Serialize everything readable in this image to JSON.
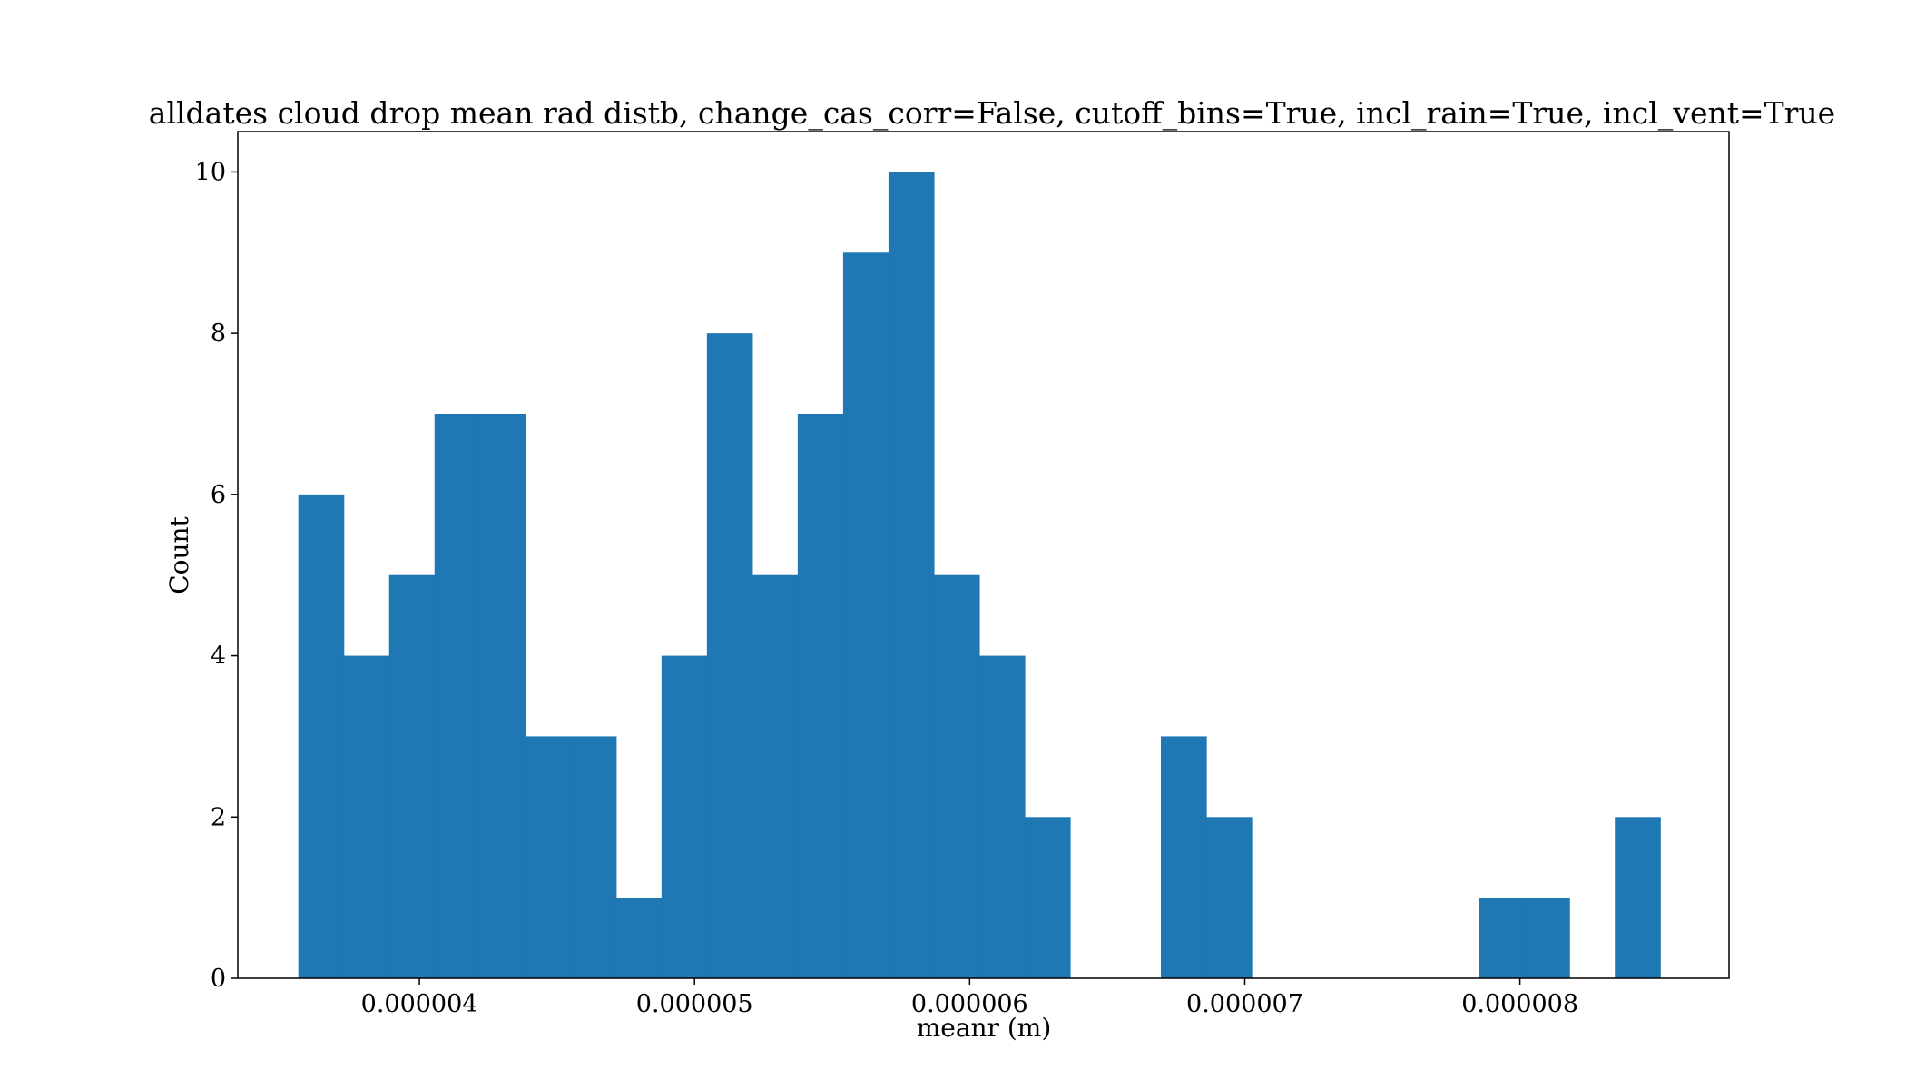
{
  "chart_data": {
    "type": "bar",
    "title": "alldates cloud drop mean rad distb, change_cas_corr=False, cutoff_bins=True, incl_rain=True, incl_vent=True",
    "xlabel": "meanr (m)",
    "ylabel": "Count",
    "bin_edges": [
      3.56e-06,
      3.725e-06,
      3.89e-06,
      4.055e-06,
      4.22e-06,
      4.385e-06,
      4.55e-06,
      4.715e-06,
      4.88e-06,
      5.045e-06,
      5.21e-06,
      5.375e-06,
      5.54e-06,
      5.705e-06,
      5.87e-06,
      6.035e-06,
      6.2e-06,
      6.365e-06,
      6.53e-06,
      6.695e-06,
      6.86e-06,
      7.025e-06,
      7.19e-06,
      7.355e-06,
      7.52e-06,
      7.685e-06,
      7.85e-06,
      8.015e-06,
      8.18e-06,
      8.345e-06,
      8.51e-06
    ],
    "values": [
      6,
      4,
      5,
      7,
      7,
      3,
      3,
      1,
      4,
      8,
      5,
      7,
      9,
      10,
      5,
      4,
      2,
      0,
      0,
      3,
      2,
      0,
      0,
      0,
      0,
      0,
      1,
      1,
      0,
      2
    ],
    "xlim": [
      3.34e-06,
      8.76e-06
    ],
    "ylim": [
      0,
      10.5
    ],
    "x_ticks": [
      4e-06,
      5e-06,
      6e-06,
      7e-06,
      8e-06
    ],
    "x_tick_labels": [
      "0.000004",
      "0.000005",
      "0.000006",
      "0.000007",
      "0.000008"
    ],
    "y_ticks": [
      0,
      2,
      4,
      6,
      8,
      10
    ],
    "y_tick_labels": [
      "0",
      "2",
      "4",
      "6",
      "8",
      "10"
    ],
    "bar_color": "#1f77b4",
    "grid": false,
    "legend": "none"
  }
}
